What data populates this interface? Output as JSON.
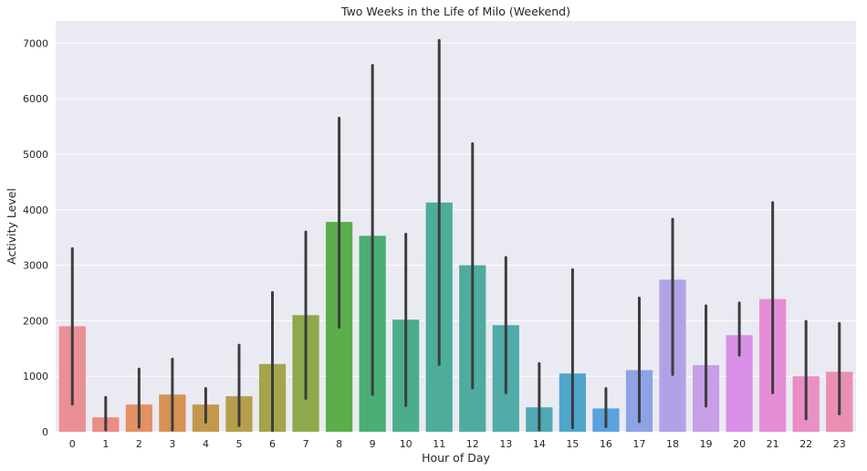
{
  "chart_data": {
    "type": "bar",
    "title": "Two Weeks in the Life of Milo (Weekend)",
    "xlabel": "Hour of Day",
    "ylabel": "Activity Level",
    "categories": [
      "0",
      "1",
      "2",
      "3",
      "4",
      "5",
      "6",
      "7",
      "8",
      "9",
      "10",
      "11",
      "12",
      "13",
      "14",
      "15",
      "16",
      "17",
      "18",
      "19",
      "20",
      "21",
      "22",
      "23"
    ],
    "values": [
      1900,
      260,
      490,
      670,
      490,
      640,
      1220,
      2100,
      3780,
      3530,
      2020,
      4130,
      3000,
      1920,
      440,
      1050,
      420,
      1110,
      2740,
      1200,
      1740,
      2390,
      1000,
      1080
    ],
    "error_low": [
      500,
      30,
      80,
      30,
      170,
      110,
      20,
      600,
      1880,
      670,
      470,
      1210,
      790,
      700,
      30,
      70,
      90,
      180,
      1030,
      460,
      1380,
      700,
      230,
      320
    ],
    "error_high": [
      3300,
      620,
      1130,
      1310,
      780,
      1560,
      2510,
      3600,
      5650,
      6600,
      3560,
      7050,
      5190,
      3140,
      1230,
      2920,
      780,
      2410,
      3830,
      2270,
      2320,
      4130,
      1990,
      1950
    ],
    "yticks": [
      "0",
      "1000",
      "2000",
      "3000",
      "4000",
      "5000",
      "6000",
      "7000"
    ],
    "ylim": [
      0,
      7400
    ],
    "grid": true,
    "colors": [
      "#ea8f96",
      "#ea8d84",
      "#e39062",
      "#d69252",
      "#c3984d",
      "#b59f4c",
      "#a5a34b",
      "#8ea84b",
      "#5aae4b",
      "#4bae74",
      "#4bae8a",
      "#4dad9a",
      "#4eac9f",
      "#51aba8",
      "#4fa9b5",
      "#4ea6cb",
      "#5aa2de",
      "#8da3e6",
      "#b1a2e8",
      "#c89fe7",
      "#d990e7",
      "#e58dd7",
      "#e98fc5",
      "#ea8fb3"
    ],
    "bar_color_labels": "husl palette",
    "error_color": "#3d3d3d",
    "background": "#eaeaf2"
  }
}
